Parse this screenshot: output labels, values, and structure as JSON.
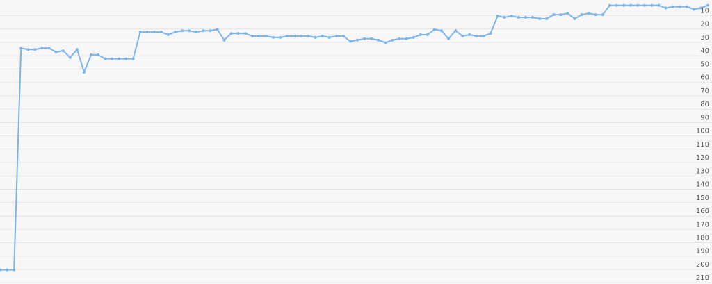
{
  "chart_data": {
    "type": "line",
    "series": [
      {
        "color": "#7cb5ec",
        "values": [
          204,
          204,
          204,
          38,
          39,
          39,
          38,
          38,
          41,
          40,
          45,
          39,
          56,
          43,
          43,
          46,
          46,
          46,
          46,
          46,
          26,
          26,
          26,
          26,
          28,
          26,
          25,
          25,
          26,
          25,
          25,
          24,
          32,
          27,
          27,
          27,
          29,
          29,
          29,
          30,
          30,
          29,
          29,
          29,
          29,
          30,
          29,
          30,
          29,
          29,
          33,
          32,
          31,
          31,
          32,
          34,
          32,
          31,
          31,
          30,
          28,
          28,
          24,
          25,
          31,
          25,
          29,
          28,
          29,
          29,
          27,
          14,
          15,
          14,
          15,
          15,
          15,
          16,
          16,
          13,
          13,
          12,
          16,
          13,
          12,
          13,
          13,
          6,
          6,
          6,
          6,
          6,
          6,
          6,
          6,
          8,
          7,
          7,
          7,
          9,
          8,
          6
        ]
      }
    ],
    "ylim": [
      2,
      213
    ],
    "reversed": true,
    "yticks": [
      10,
      20,
      30,
      40,
      50,
      60,
      70,
      80,
      90,
      100,
      110,
      120,
      130,
      140,
      150,
      160,
      170,
      180,
      190,
      200,
      210
    ],
    "grid": true
  }
}
